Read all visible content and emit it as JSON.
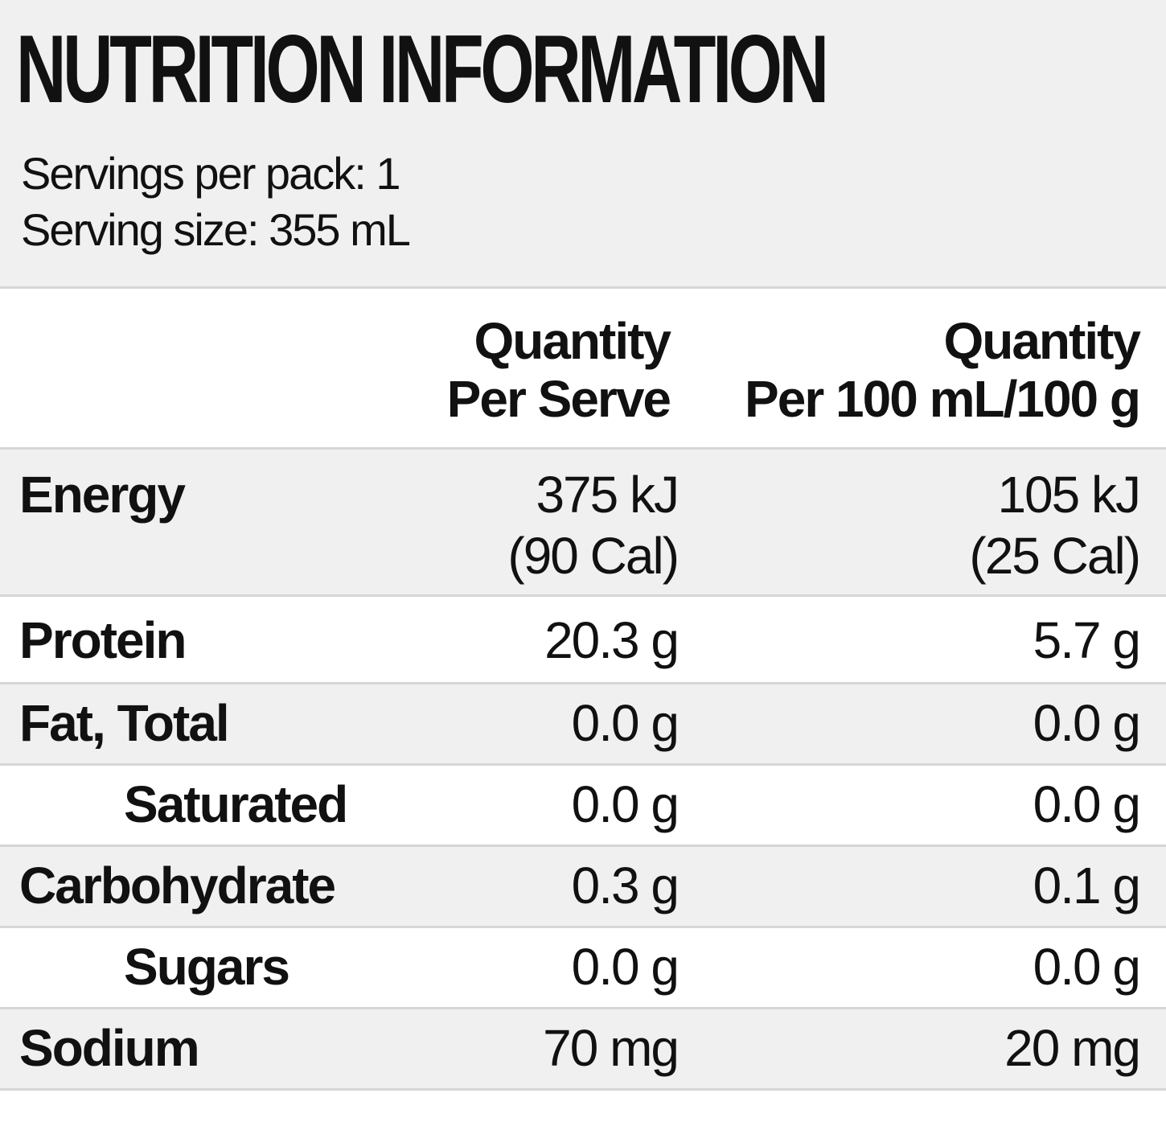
{
  "title": "NUTRITION INFORMATION",
  "servings_per_pack": "Servings per pack: 1",
  "serving_size": "Serving size: 355 mL",
  "columns": {
    "per_serve": [
      "Quantity",
      "Per Serve"
    ],
    "per_100": [
      "Quantity",
      "Per 100 mL/100 g"
    ]
  },
  "rows": [
    {
      "nutrient": "Energy",
      "per_serve": [
        "375 kJ",
        "(90 Cal)"
      ],
      "per_100": [
        "105 kJ",
        "(25 Cal)"
      ]
    },
    {
      "nutrient": "Protein",
      "per_serve": [
        "20.3 g"
      ],
      "per_100": [
        "5.7 g"
      ]
    },
    {
      "nutrient": "Fat, Total",
      "per_serve": [
        "0.0 g"
      ],
      "per_100": [
        "0.0 g"
      ]
    },
    {
      "nutrient": "Saturated",
      "per_serve": [
        "0.0 g"
      ],
      "per_100": [
        "0.0 g"
      ]
    },
    {
      "nutrient": "Carbohydrate",
      "per_serve": [
        "0.3 g"
      ],
      "per_100": [
        "0.1 g"
      ]
    },
    {
      "nutrient": "Sugars",
      "per_serve": [
        "0.0 g"
      ],
      "per_100": [
        "0.0 g"
      ]
    },
    {
      "nutrient": "Sodium",
      "per_serve": [
        "70 mg"
      ],
      "per_100": [
        "20 mg"
      ]
    }
  ],
  "colors": {
    "shade": "#f0f0f0",
    "rule": "#d6d6d6",
    "text": "#111111"
  }
}
